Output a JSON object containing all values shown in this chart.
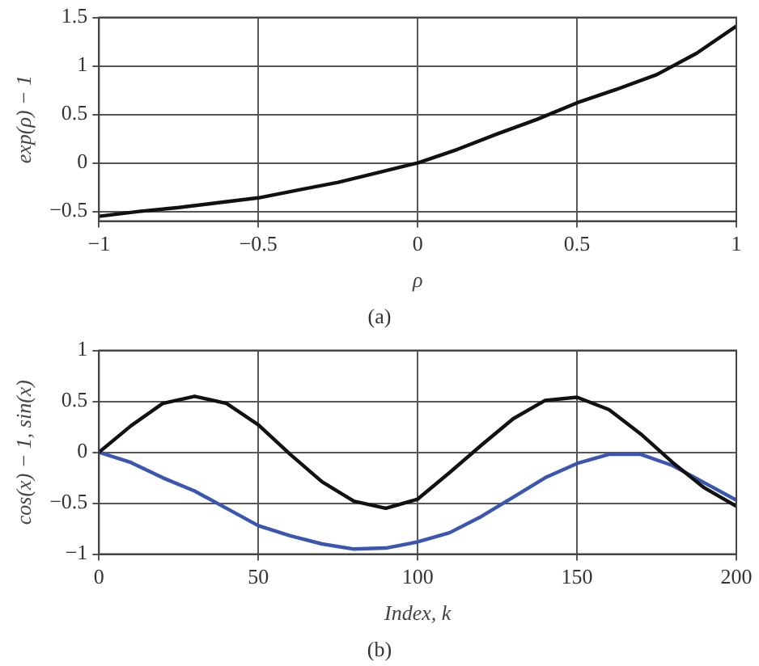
{
  "chart_data": [
    {
      "type": "line",
      "xlabel": "ρ",
      "ylabel": "exp(ρ) − 1",
      "annotations": [
        "(a)"
      ],
      "x": [
        -1,
        -0.875,
        -0.75,
        -0.625,
        -0.5,
        -0.375,
        -0.25,
        -0.125,
        0,
        0.125,
        0.25,
        0.375,
        0.5,
        0.625,
        0.75,
        0.875,
        1
      ],
      "series": [
        {
          "color": "#111111",
          "values": [
            -0.55,
            -0.5,
            -0.46,
            -0.41,
            -0.36,
            -0.28,
            -0.2,
            -0.1,
            0,
            0.14,
            0.3,
            0.45,
            0.62,
            0.76,
            0.91,
            1.13,
            1.41
          ]
        }
      ],
      "xlim": [
        -1,
        1
      ],
      "xticks": [
        -1,
        -0.5,
        0,
        0.5,
        1
      ],
      "ylim": [
        -0.6,
        1.5
      ],
      "yticks": [
        -0.5,
        0,
        0.5,
        1,
        1.5
      ],
      "grid": true,
      "legend": false,
      "marker": "none",
      "line_style": "solid"
    },
    {
      "type": "line",
      "xlabel": "Index, k",
      "ylabel": "cos(x) − 1, sin(x)",
      "annotations": [
        "(b)"
      ],
      "x": [
        0,
        10,
        20,
        30,
        40,
        50,
        60,
        70,
        80,
        90,
        100,
        110,
        120,
        130,
        140,
        150,
        160,
        170,
        180,
        190,
        200
      ],
      "series": [
        {
          "color": "#111111",
          "values": [
            0,
            0.26,
            0.48,
            0.55,
            0.48,
            0.27,
            -0.02,
            -0.29,
            -0.48,
            -0.55,
            -0.46,
            -0.2,
            0.07,
            0.33,
            0.51,
            0.54,
            0.42,
            0.18,
            -0.1,
            -0.35,
            -0.53
          ]
        },
        {
          "color": "#3a56b0",
          "values": [
            0,
            -0.1,
            -0.25,
            -0.38,
            -0.55,
            -0.72,
            -0.82,
            -0.9,
            -0.95,
            -0.94,
            -0.88,
            -0.79,
            -0.63,
            -0.44,
            -0.25,
            -0.11,
            -0.02,
            -0.02,
            -0.13,
            -0.3,
            -0.47
          ]
        }
      ],
      "xlim": [
        0,
        200
      ],
      "xticks": [
        0,
        50,
        100,
        150,
        200
      ],
      "ylim": [
        -1,
        1
      ],
      "yticks": [
        -1,
        -0.5,
        0,
        0.5,
        1
      ],
      "grid": true,
      "legend": false,
      "marker": "none",
      "line_style": "solid"
    }
  ]
}
